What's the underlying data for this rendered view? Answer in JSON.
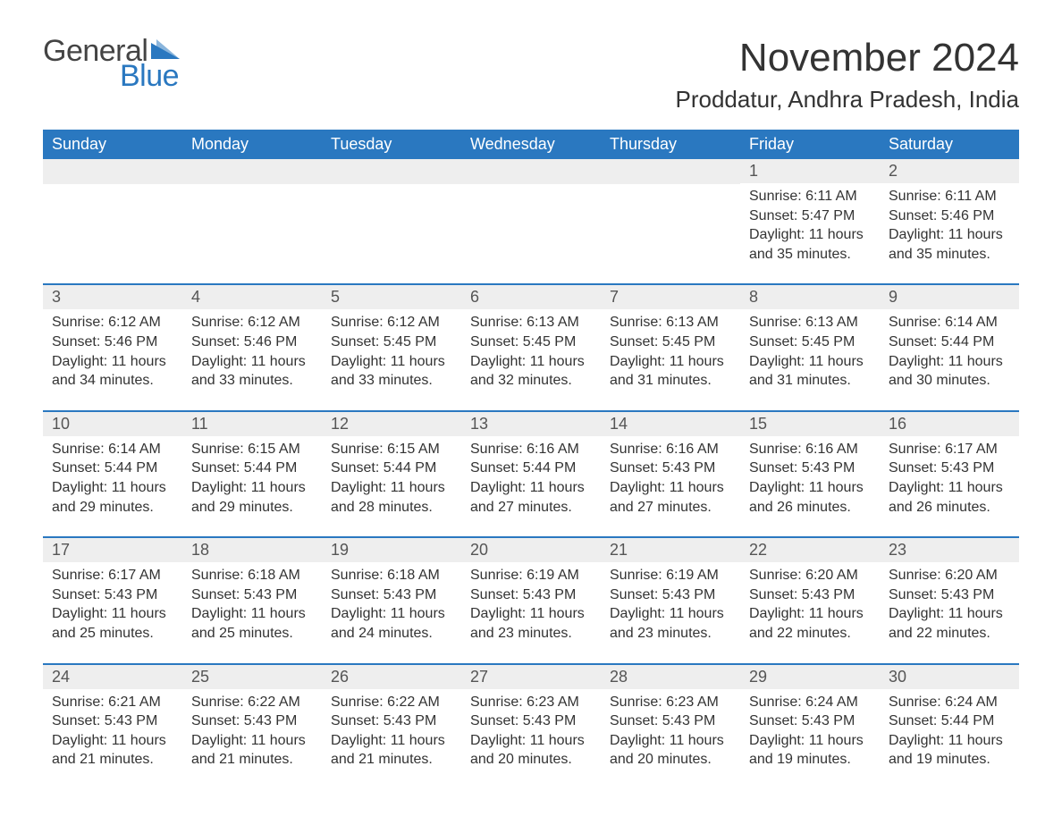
{
  "brand": {
    "word1": "General",
    "word2": "Blue",
    "word1_color": "#444444",
    "word2_color": "#2a78c0",
    "triangle_color": "#2a78c0"
  },
  "title": "November 2024",
  "location": "Proddatur, Andhra Pradesh, India",
  "colors": {
    "header_bg": "#2a78c0",
    "header_text": "#ffffff",
    "row_divider": "#2a78c0",
    "daynum_bg": "#eeeeee",
    "text": "#333333",
    "background": "#ffffff"
  },
  "day_headers": [
    "Sunday",
    "Monday",
    "Tuesday",
    "Wednesday",
    "Thursday",
    "Friday",
    "Saturday"
  ],
  "weeks": [
    [
      {
        "empty": true
      },
      {
        "empty": true
      },
      {
        "empty": true
      },
      {
        "empty": true
      },
      {
        "empty": true
      },
      {
        "n": "1",
        "sunrise": "Sunrise: 6:11 AM",
        "sunset": "Sunset: 5:47 PM",
        "d1": "Daylight: 11 hours",
        "d2": "and 35 minutes."
      },
      {
        "n": "2",
        "sunrise": "Sunrise: 6:11 AM",
        "sunset": "Sunset: 5:46 PM",
        "d1": "Daylight: 11 hours",
        "d2": "and 35 minutes."
      }
    ],
    [
      {
        "n": "3",
        "sunrise": "Sunrise: 6:12 AM",
        "sunset": "Sunset: 5:46 PM",
        "d1": "Daylight: 11 hours",
        "d2": "and 34 minutes."
      },
      {
        "n": "4",
        "sunrise": "Sunrise: 6:12 AM",
        "sunset": "Sunset: 5:46 PM",
        "d1": "Daylight: 11 hours",
        "d2": "and 33 minutes."
      },
      {
        "n": "5",
        "sunrise": "Sunrise: 6:12 AM",
        "sunset": "Sunset: 5:45 PM",
        "d1": "Daylight: 11 hours",
        "d2": "and 33 minutes."
      },
      {
        "n": "6",
        "sunrise": "Sunrise: 6:13 AM",
        "sunset": "Sunset: 5:45 PM",
        "d1": "Daylight: 11 hours",
        "d2": "and 32 minutes."
      },
      {
        "n": "7",
        "sunrise": "Sunrise: 6:13 AM",
        "sunset": "Sunset: 5:45 PM",
        "d1": "Daylight: 11 hours",
        "d2": "and 31 minutes."
      },
      {
        "n": "8",
        "sunrise": "Sunrise: 6:13 AM",
        "sunset": "Sunset: 5:45 PM",
        "d1": "Daylight: 11 hours",
        "d2": "and 31 minutes."
      },
      {
        "n": "9",
        "sunrise": "Sunrise: 6:14 AM",
        "sunset": "Sunset: 5:44 PM",
        "d1": "Daylight: 11 hours",
        "d2": "and 30 minutes."
      }
    ],
    [
      {
        "n": "10",
        "sunrise": "Sunrise: 6:14 AM",
        "sunset": "Sunset: 5:44 PM",
        "d1": "Daylight: 11 hours",
        "d2": "and 29 minutes."
      },
      {
        "n": "11",
        "sunrise": "Sunrise: 6:15 AM",
        "sunset": "Sunset: 5:44 PM",
        "d1": "Daylight: 11 hours",
        "d2": "and 29 minutes."
      },
      {
        "n": "12",
        "sunrise": "Sunrise: 6:15 AM",
        "sunset": "Sunset: 5:44 PM",
        "d1": "Daylight: 11 hours",
        "d2": "and 28 minutes."
      },
      {
        "n": "13",
        "sunrise": "Sunrise: 6:16 AM",
        "sunset": "Sunset: 5:44 PM",
        "d1": "Daylight: 11 hours",
        "d2": "and 27 minutes."
      },
      {
        "n": "14",
        "sunrise": "Sunrise: 6:16 AM",
        "sunset": "Sunset: 5:43 PM",
        "d1": "Daylight: 11 hours",
        "d2": "and 27 minutes."
      },
      {
        "n": "15",
        "sunrise": "Sunrise: 6:16 AM",
        "sunset": "Sunset: 5:43 PM",
        "d1": "Daylight: 11 hours",
        "d2": "and 26 minutes."
      },
      {
        "n": "16",
        "sunrise": "Sunrise: 6:17 AM",
        "sunset": "Sunset: 5:43 PM",
        "d1": "Daylight: 11 hours",
        "d2": "and 26 minutes."
      }
    ],
    [
      {
        "n": "17",
        "sunrise": "Sunrise: 6:17 AM",
        "sunset": "Sunset: 5:43 PM",
        "d1": "Daylight: 11 hours",
        "d2": "and 25 minutes."
      },
      {
        "n": "18",
        "sunrise": "Sunrise: 6:18 AM",
        "sunset": "Sunset: 5:43 PM",
        "d1": "Daylight: 11 hours",
        "d2": "and 25 minutes."
      },
      {
        "n": "19",
        "sunrise": "Sunrise: 6:18 AM",
        "sunset": "Sunset: 5:43 PM",
        "d1": "Daylight: 11 hours",
        "d2": "and 24 minutes."
      },
      {
        "n": "20",
        "sunrise": "Sunrise: 6:19 AM",
        "sunset": "Sunset: 5:43 PM",
        "d1": "Daylight: 11 hours",
        "d2": "and 23 minutes."
      },
      {
        "n": "21",
        "sunrise": "Sunrise: 6:19 AM",
        "sunset": "Sunset: 5:43 PM",
        "d1": "Daylight: 11 hours",
        "d2": "and 23 minutes."
      },
      {
        "n": "22",
        "sunrise": "Sunrise: 6:20 AM",
        "sunset": "Sunset: 5:43 PM",
        "d1": "Daylight: 11 hours",
        "d2": "and 22 minutes."
      },
      {
        "n": "23",
        "sunrise": "Sunrise: 6:20 AM",
        "sunset": "Sunset: 5:43 PM",
        "d1": "Daylight: 11 hours",
        "d2": "and 22 minutes."
      }
    ],
    [
      {
        "n": "24",
        "sunrise": "Sunrise: 6:21 AM",
        "sunset": "Sunset: 5:43 PM",
        "d1": "Daylight: 11 hours",
        "d2": "and 21 minutes."
      },
      {
        "n": "25",
        "sunrise": "Sunrise: 6:22 AM",
        "sunset": "Sunset: 5:43 PM",
        "d1": "Daylight: 11 hours",
        "d2": "and 21 minutes."
      },
      {
        "n": "26",
        "sunrise": "Sunrise: 6:22 AM",
        "sunset": "Sunset: 5:43 PM",
        "d1": "Daylight: 11 hours",
        "d2": "and 21 minutes."
      },
      {
        "n": "27",
        "sunrise": "Sunrise: 6:23 AM",
        "sunset": "Sunset: 5:43 PM",
        "d1": "Daylight: 11 hours",
        "d2": "and 20 minutes."
      },
      {
        "n": "28",
        "sunrise": "Sunrise: 6:23 AM",
        "sunset": "Sunset: 5:43 PM",
        "d1": "Daylight: 11 hours",
        "d2": "and 20 minutes."
      },
      {
        "n": "29",
        "sunrise": "Sunrise: 6:24 AM",
        "sunset": "Sunset: 5:43 PM",
        "d1": "Daylight: 11 hours",
        "d2": "and 19 minutes."
      },
      {
        "n": "30",
        "sunrise": "Sunrise: 6:24 AM",
        "sunset": "Sunset: 5:44 PM",
        "d1": "Daylight: 11 hours",
        "d2": "and 19 minutes."
      }
    ]
  ]
}
